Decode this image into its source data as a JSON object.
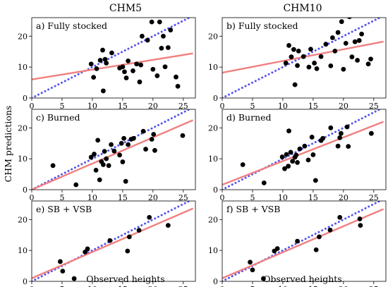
{
  "figure": {
    "column_titles": [
      "CHM5",
      "CHM10"
    ],
    "ylabel": "CHM predictions",
    "xlabel": "Observed heights"
  },
  "chart_data": [
    {
      "type": "scatter",
      "panel_label": "a) Fully stocked",
      "column": "CHM5",
      "row": 0,
      "xlim": [
        0,
        27
      ],
      "ylim": [
        0,
        26
      ],
      "xticks": [
        0,
        5,
        10,
        15,
        20,
        25
      ],
      "yticks": [
        0,
        10,
        20
      ],
      "points": [
        [
          9.8,
          11.0
        ],
        [
          10.2,
          6.7
        ],
        [
          10.7,
          9.5
        ],
        [
          11.3,
          12.2
        ],
        [
          11.7,
          15.5
        ],
        [
          11.8,
          2.3
        ],
        [
          12.1,
          12.5
        ],
        [
          12.3,
          11.3
        ],
        [
          13.2,
          14.6
        ],
        [
          14.5,
          9.7
        ],
        [
          15.0,
          10.1
        ],
        [
          15.3,
          8.5
        ],
        [
          15.6,
          6.5
        ],
        [
          15.9,
          12.0
        ],
        [
          16.7,
          8.8
        ],
        [
          17.3,
          11.0
        ],
        [
          17.8,
          5.2
        ],
        [
          18.0,
          10.7
        ],
        [
          18.2,
          20.0
        ],
        [
          19.1,
          18.7
        ],
        [
          19.8,
          24.6
        ],
        [
          20.0,
          9.3
        ],
        [
          20.7,
          7.2
        ],
        [
          21.1,
          24.6
        ],
        [
          21.4,
          16.1
        ],
        [
          21.7,
          20.0
        ],
        [
          22.0,
          10.1
        ],
        [
          22.5,
          16.3
        ],
        [
          22.9,
          22.0
        ],
        [
          23.8,
          6.8
        ],
        [
          24.1,
          3.8
        ]
      ],
      "fit_line": [
        [
          0,
          6.0
        ],
        [
          26.5,
          14.4
        ]
      ],
      "one_to_one": [
        [
          0,
          0
        ],
        [
          26.5,
          26.5
        ]
      ]
    },
    {
      "type": "scatter",
      "panel_label": "b) Fully stocked",
      "column": "CHM10",
      "row": 0,
      "xlim": [
        0,
        27
      ],
      "ylim": [
        0,
        26
      ],
      "xticks": [
        0,
        5,
        10,
        15,
        20,
        25
      ],
      "yticks": [
        0,
        10,
        20
      ],
      "points": [
        [
          10.5,
          11.3
        ],
        [
          11.0,
          17.0
        ],
        [
          11.4,
          13.3
        ],
        [
          11.8,
          15.7
        ],
        [
          12.0,
          4.3
        ],
        [
          12.4,
          10.5
        ],
        [
          12.6,
          15.2
        ],
        [
          13.4,
          13.4
        ],
        [
          14.3,
          10.0
        ],
        [
          14.6,
          15.8
        ],
        [
          15.2,
          11.3
        ],
        [
          15.6,
          9.5
        ],
        [
          16.3,
          13.4
        ],
        [
          17.1,
          17.4
        ],
        [
          17.9,
          10.4
        ],
        [
          18.2,
          19.5
        ],
        [
          18.6,
          15.2
        ],
        [
          19.1,
          21.2
        ],
        [
          19.7,
          24.7
        ],
        [
          20.0,
          9.3
        ],
        [
          20.4,
          17.7
        ],
        [
          21.0,
          26.3
        ],
        [
          21.4,
          13.3
        ],
        [
          21.9,
          18.2
        ],
        [
          22.3,
          12.2
        ],
        [
          22.6,
          18.6
        ],
        [
          23.0,
          20.7
        ],
        [
          24.1,
          11.0
        ],
        [
          24.5,
          12.6
        ]
      ],
      "fit_line": [
        [
          0,
          8.2
        ],
        [
          26.5,
          18.2
        ]
      ],
      "one_to_one": [
        [
          0,
          0
        ],
        [
          26.5,
          26.5
        ]
      ]
    },
    {
      "type": "scatter",
      "panel_label": "c) Burned",
      "column": "CHM5",
      "row": 1,
      "xlim": [
        0,
        27
      ],
      "ylim": [
        0,
        26
      ],
      "xticks": [
        0,
        5,
        10,
        15,
        20,
        25
      ],
      "yticks": [
        0,
        10,
        20
      ],
      "points": [
        [
          3.5,
          7.8
        ],
        [
          7.3,
          1.6
        ],
        [
          9.8,
          10.5
        ],
        [
          10.3,
          11.5
        ],
        [
          10.6,
          6.3
        ],
        [
          10.9,
          16.0
        ],
        [
          11.2,
          3.2
        ],
        [
          11.5,
          9.1
        ],
        [
          11.8,
          8.1
        ],
        [
          12.0,
          12.4
        ],
        [
          12.3,
          10.0
        ],
        [
          12.7,
          7.8
        ],
        [
          13.1,
          14.6
        ],
        [
          13.6,
          12.5
        ],
        [
          14.5,
          11.2
        ],
        [
          14.8,
          15.0
        ],
        [
          15.0,
          9.0
        ],
        [
          15.2,
          16.6
        ],
        [
          15.5,
          2.7
        ],
        [
          15.9,
          14.6
        ],
        [
          16.4,
          16.3
        ],
        [
          16.8,
          16.6
        ],
        [
          18.4,
          18.9
        ],
        [
          18.8,
          13.1
        ],
        [
          19.8,
          16.3
        ],
        [
          20.1,
          17.9
        ],
        [
          20.3,
          12.7
        ],
        [
          24.9,
          17.5
        ]
      ],
      "fit_line": [
        [
          0,
          0.0
        ],
        [
          26.5,
          22.4
        ]
      ],
      "one_to_one": [
        [
          0,
          0
        ],
        [
          26.5,
          26.5
        ]
      ]
    },
    {
      "type": "scatter",
      "panel_label": "d) Burned",
      "column": "CHM10",
      "row": 1,
      "xlim": [
        0,
        27
      ],
      "ylim": [
        0,
        26
      ],
      "xticks": [
        0,
        5,
        10,
        15,
        20,
        25
      ],
      "yticks": [
        0,
        10,
        20
      ],
      "points": [
        [
          3.4,
          8.1
        ],
        [
          6.9,
          2.2
        ],
        [
          9.9,
          10.6
        ],
        [
          10.3,
          6.8
        ],
        [
          10.6,
          11.4
        ],
        [
          10.9,
          7.6
        ],
        [
          11.0,
          19.0
        ],
        [
          11.3,
          12.1
        ],
        [
          11.6,
          9.2
        ],
        [
          12.0,
          10.5
        ],
        [
          12.2,
          11.2
        ],
        [
          12.4,
          8.8
        ],
        [
          12.8,
          13.2
        ],
        [
          13.6,
          14.1
        ],
        [
          14.2,
          9.6
        ],
        [
          14.8,
          17.0
        ],
        [
          15.0,
          11.3
        ],
        [
          15.4,
          3.0
        ],
        [
          16.3,
          15.9
        ],
        [
          16.6,
          16.6
        ],
        [
          17.9,
          20.0
        ],
        [
          19.1,
          14.1
        ],
        [
          19.4,
          16.8
        ],
        [
          19.6,
          18.2
        ],
        [
          20.6,
          20.3
        ],
        [
          20.8,
          14.0
        ],
        [
          24.6,
          18.2
        ]
      ],
      "fit_line": [
        [
          0,
          1.6
        ],
        [
          26.5,
          21.9
        ]
      ],
      "one_to_one": [
        [
          0,
          0
        ],
        [
          26.5,
          26.5
        ]
      ]
    },
    {
      "type": "scatter",
      "panel_label": "e) SB + VSB",
      "column": "CHM5",
      "row": 2,
      "xlim": [
        0,
        27
      ],
      "ylim": [
        0,
        26
      ],
      "xticks": [
        0,
        5,
        10,
        15,
        20,
        25
      ],
      "yticks": [
        0,
        10,
        20
      ],
      "points": [
        [
          4.7,
          6.4
        ],
        [
          5.1,
          3.3
        ],
        [
          7.0,
          0.9
        ],
        [
          8.8,
          9.5
        ],
        [
          9.2,
          10.5
        ],
        [
          12.9,
          13.2
        ],
        [
          15.8,
          9.8
        ],
        [
          16.1,
          14.4
        ],
        [
          17.7,
          16.5
        ],
        [
          19.4,
          20.7
        ],
        [
          22.5,
          18.1
        ]
      ],
      "fit_line": [
        [
          0,
          1.0
        ],
        [
          26.5,
          23.5
        ]
      ],
      "one_to_one": [
        [
          0,
          0
        ],
        [
          26.5,
          26.5
        ]
      ]
    },
    {
      "type": "scatter",
      "panel_label": "f) SB + VSB",
      "column": "CHM10",
      "row": 2,
      "xlim": [
        0,
        27
      ],
      "ylim": [
        0,
        26
      ],
      "xticks": [
        0,
        5,
        10,
        15,
        20,
        25
      ],
      "yticks": [
        0,
        10,
        20
      ],
      "points": [
        [
          4.6,
          6.2
        ],
        [
          5.0,
          3.7
        ],
        [
          6.8,
          0.9
        ],
        [
          8.6,
          9.8
        ],
        [
          9.1,
          10.6
        ],
        [
          12.4,
          13.0
        ],
        [
          15.5,
          10.2
        ],
        [
          16.0,
          14.4
        ],
        [
          17.8,
          16.6
        ],
        [
          19.4,
          20.7
        ],
        [
          22.7,
          20.2
        ],
        [
          22.8,
          18.1
        ]
      ],
      "fit_line": [
        [
          0,
          1.0
        ],
        [
          26.5,
          23.3
        ]
      ],
      "one_to_one": [
        [
          0,
          0
        ],
        [
          26.5,
          26.5
        ]
      ]
    }
  ]
}
